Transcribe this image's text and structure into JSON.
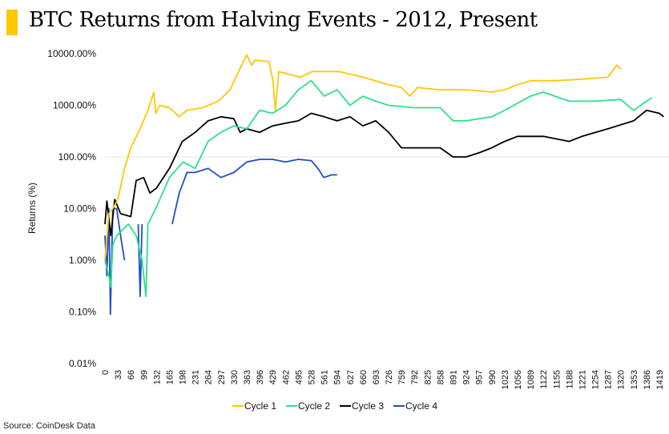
{
  "chart_data": {
    "type": "line",
    "title": "BTC Returns from Halving Events - 2012, Present",
    "ylabel": "Returns (%)",
    "xlabel": "",
    "yscale": "log",
    "ylim": [
      0.01,
      10000
    ],
    "xlim": [
      0,
      1430
    ],
    "yticks": [
      "10000.00%",
      "1000.00%",
      "100.00%",
      "10.00%",
      "1.00%",
      "0.10%",
      "0.01%"
    ],
    "ytick_values": [
      10000,
      1000,
      100,
      10,
      1,
      0.1,
      0.01
    ],
    "xticks": [
      0,
      33,
      66,
      99,
      132,
      165,
      198,
      231,
      264,
      297,
      330,
      363,
      396,
      429,
      462,
      495,
      528,
      561,
      594,
      627,
      660,
      693,
      726,
      759,
      792,
      825,
      858,
      891,
      924,
      957,
      990,
      1023,
      1056,
      1089,
      1122,
      1155,
      1188,
      1221,
      1254,
      1287,
      1320,
      1353,
      1386,
      1419
    ],
    "grid": "horizontal",
    "legend": "bottom",
    "source": "Source: CoinDesk Data",
    "series": [
      {
        "name": "Cycle 1",
        "color": "#ffc800",
        "points": [
          [
            0,
            1
          ],
          [
            10,
            8
          ],
          [
            20,
            10
          ],
          [
            33,
            15
          ],
          [
            50,
            60
          ],
          [
            66,
            150
          ],
          [
            90,
            350
          ],
          [
            110,
            800
          ],
          [
            125,
            1800
          ],
          [
            130,
            700
          ],
          [
            140,
            1000
          ],
          [
            165,
            900
          ],
          [
            190,
            600
          ],
          [
            210,
            800
          ],
          [
            250,
            900
          ],
          [
            290,
            1200
          ],
          [
            320,
            2000
          ],
          [
            345,
            5000
          ],
          [
            363,
            9500
          ],
          [
            375,
            6000
          ],
          [
            385,
            7500
          ],
          [
            420,
            7000
          ],
          [
            430,
            3000
          ],
          [
            436,
            800
          ],
          [
            445,
            4500
          ],
          [
            470,
            4000
          ],
          [
            500,
            3500
          ],
          [
            530,
            4500
          ],
          [
            600,
            4500
          ],
          [
            660,
            3500
          ],
          [
            726,
            2500
          ],
          [
            759,
            2200
          ],
          [
            780,
            1500
          ],
          [
            800,
            2200
          ],
          [
            858,
            2000
          ],
          [
            924,
            2000
          ],
          [
            990,
            1800
          ],
          [
            1023,
            2000
          ],
          [
            1056,
            2500
          ],
          [
            1089,
            3000
          ],
          [
            1155,
            3000
          ],
          [
            1221,
            3200
          ],
          [
            1287,
            3500
          ],
          [
            1310,
            6000
          ],
          [
            1320,
            5000
          ]
        ]
      },
      {
        "name": "Cycle 2",
        "color": "#2ee08a",
        "points": [
          [
            0,
            1
          ],
          [
            10,
            0.5
          ],
          [
            15,
            0.3
          ],
          [
            20,
            2
          ],
          [
            30,
            3
          ],
          [
            60,
            5
          ],
          [
            80,
            3
          ],
          [
            95,
            1
          ],
          [
            105,
            0.2
          ],
          [
            110,
            5
          ],
          [
            130,
            10
          ],
          [
            165,
            40
          ],
          [
            200,
            80
          ],
          [
            231,
            60
          ],
          [
            264,
            200
          ],
          [
            297,
            300
          ],
          [
            330,
            400
          ],
          [
            363,
            350
          ],
          [
            396,
            800
          ],
          [
            429,
            700
          ],
          [
            462,
            1000
          ],
          [
            495,
            2000
          ],
          [
            528,
            3000
          ],
          [
            561,
            1500
          ],
          [
            594,
            2000
          ],
          [
            627,
            1000
          ],
          [
            660,
            1500
          ],
          [
            693,
            1200
          ],
          [
            726,
            1000
          ],
          [
            792,
            900
          ],
          [
            858,
            900
          ],
          [
            891,
            500
          ],
          [
            924,
            500
          ],
          [
            990,
            600
          ],
          [
            1023,
            800
          ],
          [
            1089,
            1500
          ],
          [
            1122,
            1800
          ],
          [
            1188,
            1200
          ],
          [
            1254,
            1200
          ],
          [
            1320,
            1300
          ],
          [
            1353,
            800
          ],
          [
            1386,
            1200
          ],
          [
            1400,
            1400
          ]
        ]
      },
      {
        "name": "Cycle 3",
        "color": "#000000",
        "points": [
          [
            0,
            5
          ],
          [
            5,
            14
          ],
          [
            15,
            3
          ],
          [
            25,
            15
          ],
          [
            40,
            8
          ],
          [
            66,
            7
          ],
          [
            80,
            35
          ],
          [
            99,
            40
          ],
          [
            115,
            20
          ],
          [
            132,
            25
          ],
          [
            165,
            60
          ],
          [
            198,
            200
          ],
          [
            231,
            300
          ],
          [
            264,
            500
          ],
          [
            297,
            600
          ],
          [
            330,
            550
          ],
          [
            346,
            300
          ],
          [
            363,
            350
          ],
          [
            396,
            300
          ],
          [
            429,
            400
          ],
          [
            462,
            450
          ],
          [
            495,
            500
          ],
          [
            528,
            700
          ],
          [
            561,
            600
          ],
          [
            594,
            500
          ],
          [
            627,
            600
          ],
          [
            660,
            400
          ],
          [
            693,
            500
          ],
          [
            726,
            300
          ],
          [
            759,
            150
          ],
          [
            792,
            150
          ],
          [
            858,
            150
          ],
          [
            891,
            100
          ],
          [
            924,
            100
          ],
          [
            957,
            120
          ],
          [
            990,
            150
          ],
          [
            1023,
            200
          ],
          [
            1056,
            250
          ],
          [
            1122,
            250
          ],
          [
            1188,
            200
          ],
          [
            1221,
            250
          ],
          [
            1287,
            350
          ],
          [
            1353,
            500
          ],
          [
            1386,
            800
          ],
          [
            1419,
            700
          ],
          [
            1430,
            600
          ]
        ]
      },
      {
        "name": "Cycle 4",
        "color": "#1f4fc4",
        "points": [
          [
            0,
            3
          ],
          [
            5,
            0.5
          ],
          [
            10,
            10
          ],
          [
            14,
            0.09
          ],
          [
            20,
            10
          ],
          [
            30,
            10
          ],
          [
            40,
            3
          ],
          [
            50,
            1
          ],
          [
            60,
            null
          ],
          [
            85,
            5
          ],
          [
            90,
            0.2
          ],
          [
            95,
            5
          ],
          [
            100,
            null
          ],
          [
            120,
            0.6
          ],
          [
            125,
            null
          ],
          [
            160,
            2
          ],
          [
            165,
            null
          ],
          [
            172,
            5
          ],
          [
            190,
            20
          ],
          [
            210,
            50
          ],
          [
            231,
            50
          ],
          [
            264,
            60
          ],
          [
            297,
            40
          ],
          [
            330,
            50
          ],
          [
            363,
            80
          ],
          [
            396,
            90
          ],
          [
            429,
            90
          ],
          [
            462,
            80
          ],
          [
            495,
            90
          ],
          [
            528,
            85
          ],
          [
            545,
            60
          ],
          [
            560,
            40
          ],
          [
            580,
            45
          ],
          [
            594,
            45
          ]
        ]
      }
    ]
  }
}
